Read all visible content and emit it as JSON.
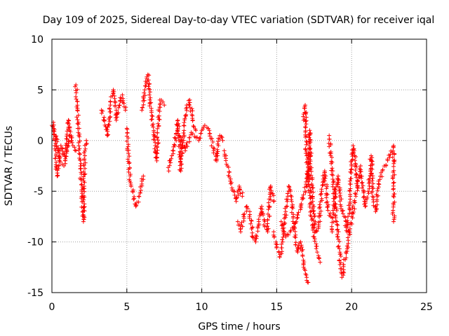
{
  "chart_data": {
    "type": "scatter",
    "title": "Day 109 of 2025, Sidereal Day-to-day VTEC variation (SDTVAR) for receiver iqal",
    "xlabel": "GPS time / hours",
    "ylabel": "SDTVAR / TECUs",
    "xlim": [
      0,
      25
    ],
    "ylim": [
      -15,
      10
    ],
    "xticks": [
      "0",
      "5",
      "10",
      "15",
      "20",
      "25"
    ],
    "yticks": [
      "10",
      "5",
      "0",
      "-5",
      "-10",
      "-15"
    ],
    "grid": true,
    "marker": "+",
    "series": [
      {
        "name": "SDTVAR",
        "color": "#ff0000",
        "segments": [
          [
            [
              0.0,
              1.5
            ],
            [
              0.3,
              0.2
            ],
            [
              0.5,
              -2.0
            ],
            [
              0.8,
              -2.5
            ],
            [
              1.0,
              -1.0
            ],
            [
              1.2,
              0.5
            ],
            [
              1.4,
              -0.5
            ],
            [
              1.6,
              -1.0
            ]
          ],
          [
            [
              0.1,
              1.8
            ],
            [
              0.25,
              -1.0
            ],
            [
              0.35,
              -3.5
            ],
            [
              0.6,
              -0.5
            ],
            [
              0.9,
              -1.8
            ],
            [
              1.1,
              2.0
            ],
            [
              1.3,
              0.0
            ]
          ],
          [
            [
              1.6,
              5.5
            ],
            [
              1.7,
              3.0
            ],
            [
              1.8,
              0.5
            ],
            [
              1.9,
              -2.5
            ],
            [
              2.0,
              -5.0
            ],
            [
              2.05,
              -7.0
            ],
            [
              2.1,
              -8.0
            ],
            [
              2.15,
              -4.5
            ],
            [
              2.2,
              -1.5
            ],
            [
              2.3,
              0.0
            ]
          ],
          [
            [
              3.3,
              3.0
            ],
            [
              3.5,
              2.0
            ],
            [
              3.7,
              0.5
            ],
            [
              3.9,
              3.5
            ],
            [
              4.1,
              5.0
            ],
            [
              4.3,
              2.0
            ],
            [
              4.5,
              3.5
            ],
            [
              4.7,
              4.5
            ],
            [
              4.9,
              3.0
            ]
          ],
          [
            [
              5.0,
              1.2
            ],
            [
              5.2,
              -4.0
            ],
            [
              5.4,
              -5.0
            ],
            [
              5.6,
              -6.5
            ],
            [
              5.8,
              -5.5
            ],
            [
              6.0,
              -4.0
            ],
            [
              6.1,
              -3.5
            ]
          ],
          [
            [
              6.0,
              3.0
            ],
            [
              6.2,
              5.0
            ],
            [
              6.4,
              6.5
            ],
            [
              6.5,
              4.5
            ],
            [
              6.7,
              1.5
            ],
            [
              6.9,
              -0.5
            ],
            [
              7.0,
              -2.0
            ],
            [
              7.2,
              4.0
            ],
            [
              7.5,
              3.5
            ]
          ],
          [
            [
              7.8,
              -3.0
            ],
            [
              8.0,
              -1.5
            ],
            [
              8.2,
              -0.5
            ],
            [
              8.4,
              2.0
            ],
            [
              8.6,
              -3.0
            ],
            [
              8.8,
              1.5
            ],
            [
              9.0,
              3.5
            ],
            [
              9.2,
              4.0
            ],
            [
              9.4,
              2.0
            ],
            [
              9.6,
              1.0
            ]
          ],
          [
            [
              8.5,
              0.5
            ],
            [
              8.9,
              -1.0
            ],
            [
              9.3,
              0.8
            ],
            [
              9.8,
              0.0
            ],
            [
              10.0,
              1.0
            ],
            [
              10.2,
              1.5
            ],
            [
              10.5,
              1.0
            ],
            [
              10.8,
              -1.0
            ],
            [
              11.0,
              -2.0
            ],
            [
              11.2,
              0.5
            ],
            [
              11.4,
              0.0
            ]
          ],
          [
            [
              11.5,
              -1.0
            ],
            [
              11.7,
              -2.5
            ],
            [
              11.9,
              -4.0
            ],
            [
              12.1,
              -5.0
            ],
            [
              12.3,
              -6.0
            ],
            [
              12.5,
              -4.5
            ],
            [
              12.7,
              -5.5
            ]
          ],
          [
            [
              12.4,
              -8.0
            ],
            [
              12.6,
              -9.0
            ],
            [
              12.8,
              -7.5
            ],
            [
              13.0,
              -6.5
            ],
            [
              13.2,
              -7.0
            ],
            [
              13.4,
              -9.5
            ],
            [
              13.6,
              -10.0
            ],
            [
              13.8,
              -8.0
            ],
            [
              14.0,
              -6.5
            ],
            [
              14.2,
              -8.5
            ],
            [
              14.4,
              -9.0
            ],
            [
              14.6,
              -4.5
            ],
            [
              14.8,
              -6.0
            ]
          ],
          [
            [
              14.8,
              -9.0
            ],
            [
              15.0,
              -10.5
            ],
            [
              15.2,
              -11.5
            ],
            [
              15.4,
              -10.0
            ],
            [
              15.6,
              -7.0
            ],
            [
              15.8,
              -4.5
            ],
            [
              16.0,
              -6.0
            ],
            [
              16.2,
              -9.5
            ],
            [
              16.4,
              -11.0
            ],
            [
              16.6,
              -10.0
            ],
            [
              16.8,
              -12.5
            ],
            [
              17.0,
              -13.5
            ],
            [
              17.1,
              -14.0
            ]
          ],
          [
            [
              15.3,
              -8.0
            ],
            [
              15.6,
              -9.5
            ],
            [
              15.9,
              -9.0
            ],
            [
              16.3,
              -8.0
            ],
            [
              16.6,
              -6.5
            ],
            [
              16.9,
              -5.0
            ],
            [
              17.1,
              -3.0
            ],
            [
              17.3,
              -7.5
            ],
            [
              17.5,
              -9.5
            ],
            [
              17.7,
              -11.0
            ],
            [
              17.9,
              -12.0
            ]
          ],
          [
            [
              16.8,
              2.0
            ],
            [
              16.9,
              3.5
            ],
            [
              17.0,
              -1.5
            ],
            [
              17.1,
              -4.0
            ],
            [
              17.2,
              1.0
            ],
            [
              17.4,
              -6.0
            ],
            [
              17.6,
              -9.0
            ],
            [
              17.8,
              -8.5
            ],
            [
              18.0,
              -5.0
            ],
            [
              18.2,
              -3.0
            ],
            [
              18.4,
              -6.5
            ],
            [
              18.6,
              -7.5
            ]
          ],
          [
            [
              18.7,
              -9.0
            ],
            [
              18.9,
              -5.0
            ],
            [
              19.1,
              -3.5
            ],
            [
              19.3,
              -6.5
            ],
            [
              19.5,
              -7.5
            ],
            [
              19.7,
              -9.0
            ],
            [
              19.9,
              -5.5
            ],
            [
              20.0,
              -2.5
            ],
            [
              20.1,
              -0.5
            ],
            [
              20.2,
              -1.5
            ],
            [
              20.4,
              -4.5
            ]
          ],
          [
            [
              18.5,
              0.5
            ],
            [
              19.3,
              -13.0
            ],
            [
              19.35,
              -13.5
            ],
            [
              20.6,
              -2.5
            ],
            [
              20.9,
              -6.5
            ],
            [
              21.1,
              -5.0
            ],
            [
              21.3,
              -1.5
            ],
            [
              21.4,
              -5.5
            ],
            [
              21.6,
              -7.0
            ],
            [
              21.8,
              -4.0
            ],
            [
              22.8,
              -0.5
            ],
            [
              22.8,
              -2.0
            ],
            [
              22.8,
              -8.0
            ]
          ]
        ]
      }
    ]
  }
}
